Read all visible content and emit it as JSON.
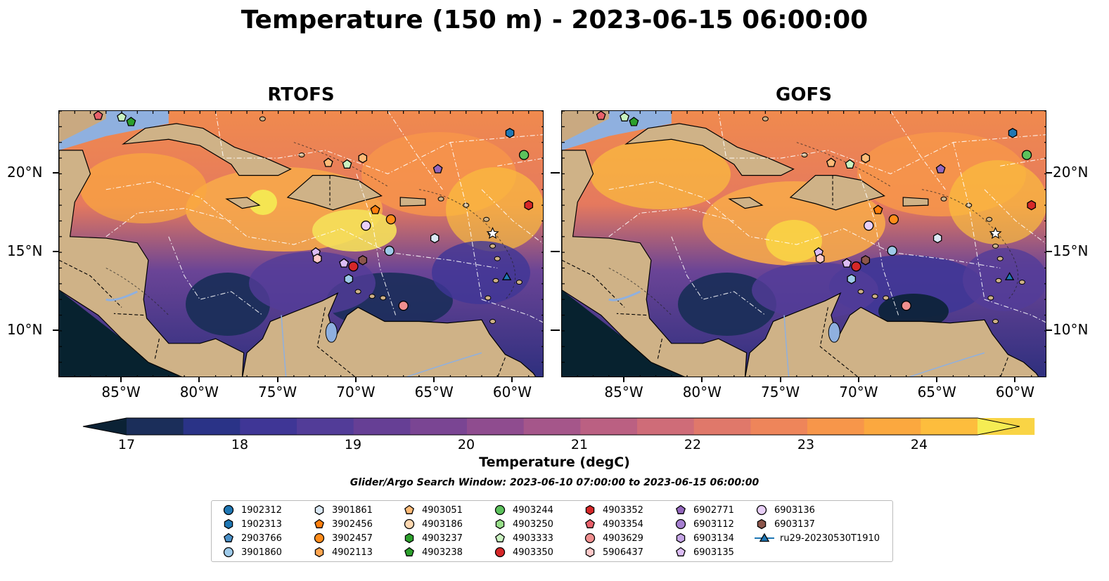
{
  "title": "Temperature (150 m) - 2023-06-15 06:00:00",
  "panels": [
    {
      "title": "RTOFS"
    },
    {
      "title": "GOFS"
    }
  ],
  "x_ticks": [
    "85°W",
    "80°W",
    "75°W",
    "70°W",
    "65°W",
    "60°W"
  ],
  "y_ticks": [
    "20°N",
    "15°N",
    "10°N"
  ],
  "colorbar": {
    "label": "Temperature (degC)",
    "ticks": [
      "17",
      "18",
      "19",
      "20",
      "21",
      "22",
      "23",
      "24"
    ],
    "colors": [
      "#0b2235",
      "#1b2e5a",
      "#2a3387",
      "#3f3696",
      "#523c98",
      "#663f95",
      "#7a4593",
      "#8f4c8f",
      "#a5568a",
      "#bb6082",
      "#cf6c78",
      "#e0786a",
      "#ee855a",
      "#f7964a",
      "#fba83f",
      "#fdbd3d",
      "#f9d445",
      "#f5ec53"
    ]
  },
  "search_window": "Glider/Argo Search Window: 2023-06-10 07:00:00 to 2023-06-15 06:00:00",
  "legend": [
    {
      "label": "1902312",
      "marker": "circle",
      "color": "#1f77b4"
    },
    {
      "label": "1902313",
      "marker": "hexagon",
      "color": "#1f77b4"
    },
    {
      "label": "2903766",
      "marker": "pentagon",
      "color": "#4a90c8"
    },
    {
      "label": "3901860",
      "marker": "circle",
      "color": "#9ecae9"
    },
    {
      "label": "3901861",
      "marker": "hexagon",
      "color": "#dbe9f6"
    },
    {
      "label": "3902456",
      "marker": "pentagon",
      "color": "#ff7f0e"
    },
    {
      "label": "3902457",
      "marker": "circle",
      "color": "#ff8c1a"
    },
    {
      "label": "4902113",
      "marker": "hexagon",
      "color": "#ffa54f"
    },
    {
      "label": "4903051",
      "marker": "pentagon",
      "color": "#ffbb78"
    },
    {
      "label": "4903186",
      "marker": "circle",
      "color": "#ffd8b1"
    },
    {
      "label": "4903237",
      "marker": "hexagon",
      "color": "#2ca02c"
    },
    {
      "label": "4903238",
      "marker": "pentagon",
      "color": "#2ca02c"
    },
    {
      "label": "4903244",
      "marker": "circle",
      "color": "#5cc25c"
    },
    {
      "label": "4903250",
      "marker": "hexagon",
      "color": "#98df8a"
    },
    {
      "label": "4903333",
      "marker": "pentagon",
      "color": "#c9f2c0"
    },
    {
      "label": "4903350",
      "marker": "circle",
      "color": "#d62728"
    },
    {
      "label": "4903352",
      "marker": "hexagon",
      "color": "#d62728"
    },
    {
      "label": "4903354",
      "marker": "pentagon",
      "color": "#e8606a"
    },
    {
      "label": "4903629",
      "marker": "circle",
      "color": "#f08f8f"
    },
    {
      "label": "5906437",
      "marker": "hexagon",
      "color": "#ffc9c9"
    },
    {
      "label": "6902771",
      "marker": "pentagon",
      "color": "#9467bd"
    },
    {
      "label": "6903112",
      "marker": "circle",
      "color": "#a57fd0"
    },
    {
      "label": "6903134",
      "marker": "hexagon",
      "color": "#c5a5e6"
    },
    {
      "label": "6903135",
      "marker": "pentagon",
      "color": "#dcbdf5"
    },
    {
      "label": "6903136",
      "marker": "circle",
      "color": "#e8cff8"
    },
    {
      "label": "6903137",
      "marker": "hexagon",
      "color": "#8c564b"
    },
    {
      "label": "ru29-20230530T1910",
      "marker": "triangle-line",
      "color": "#1f77b4"
    }
  ],
  "markers_lonlat": [
    {
      "lon": -60.2,
      "lat": 22.6,
      "marker": "hexagon",
      "color": "#1f77b4"
    },
    {
      "lon": -59.3,
      "lat": 21.2,
      "marker": "circle",
      "color": "#5cc25c"
    },
    {
      "lon": -64.8,
      "lat": 20.3,
      "marker": "pentagon",
      "color": "#9467bd"
    },
    {
      "lon": -59.0,
      "lat": 18.0,
      "marker": "hexagon",
      "color": "#d62728"
    },
    {
      "lon": -69.6,
      "lat": 21.0,
      "marker": "hexagon",
      "color": "#ffbb78"
    },
    {
      "lon": -71.8,
      "lat": 20.7,
      "marker": "pentagon",
      "color": "#ffbb78"
    },
    {
      "lon": -70.6,
      "lat": 20.6,
      "marker": "pentagon",
      "color": "#c9f2c0"
    },
    {
      "lon": -68.8,
      "lat": 17.7,
      "marker": "pentagon",
      "color": "#ff7f0e"
    },
    {
      "lon": -67.8,
      "lat": 17.1,
      "marker": "circle",
      "color": "#ff8c1a"
    },
    {
      "lon": -69.4,
      "lat": 16.7,
      "marker": "circle",
      "color": "#e8cff8"
    },
    {
      "lon": -67.9,
      "lat": 15.1,
      "marker": "circle",
      "color": "#9ecae9"
    },
    {
      "lon": -65.0,
      "lat": 15.9,
      "marker": "hexagon",
      "color": "#dbe9f6"
    },
    {
      "lon": -61.3,
      "lat": 16.2,
      "marker": "star",
      "color": "#ffffff"
    },
    {
      "lon": -72.6,
      "lat": 15.0,
      "marker": "pentagon",
      "color": "#dcbdf5"
    },
    {
      "lon": -72.5,
      "lat": 14.6,
      "marker": "hexagon",
      "color": "#ffc9c9"
    },
    {
      "lon": -70.8,
      "lat": 14.3,
      "marker": "pentagon",
      "color": "#dcbdf5"
    },
    {
      "lon": -69.6,
      "lat": 14.5,
      "marker": "hexagon",
      "color": "#8c564b"
    },
    {
      "lon": -70.2,
      "lat": 14.1,
      "marker": "circle",
      "color": "#d62728"
    },
    {
      "lon": -70.5,
      "lat": 13.3,
      "marker": "hexagon",
      "color": "#9ecae9"
    },
    {
      "lon": -67.0,
      "lat": 11.6,
      "marker": "circle",
      "color": "#f08f8f"
    },
    {
      "lon": -60.4,
      "lat": 13.4,
      "marker": "triangle",
      "color": "#1f77b4"
    },
    {
      "lon": -86.5,
      "lat": 23.7,
      "marker": "pentagon",
      "color": "#e8606a"
    },
    {
      "lon": -85.0,
      "lat": 23.6,
      "marker": "pentagon",
      "color": "#c9f2c0"
    },
    {
      "lon": -84.4,
      "lat": 23.3,
      "marker": "pentagon",
      "color": "#2ca02c"
    }
  ]
}
